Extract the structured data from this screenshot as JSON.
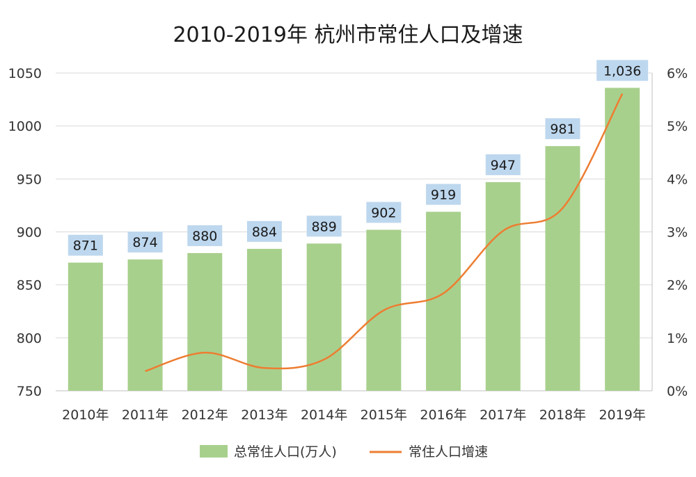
{
  "chart_data": {
    "type": "bar",
    "title": "2010-2019年  杭州市常住人口及增速",
    "categories": [
      "2010年",
      "2011年",
      "2012年",
      "2013年",
      "2014年",
      "2015年",
      "2016年",
      "2017年",
      "2018年",
      "2019年"
    ],
    "series": [
      {
        "name": "总常住人口(万人)",
        "type": "bar",
        "axis": "left",
        "values": [
          871,
          874,
          880,
          884,
          889,
          902,
          919,
          947,
          981,
          1036
        ],
        "data_labels": [
          "871",
          "874",
          "880",
          "884",
          "889",
          "902",
          "919",
          "947",
          "981",
          "1,036"
        ],
        "color": "#a8d08d"
      },
      {
        "name": "常住人口增速",
        "type": "line",
        "axis": "right",
        "values": [
          null,
          0.0037,
          0.0072,
          0.0043,
          0.0059,
          0.0152,
          0.0184,
          0.0302,
          0.0345,
          0.0561
        ],
        "color": "#ed7d31"
      }
    ],
    "y_left": {
      "ylim": [
        750,
        1050
      ],
      "ticks": [
        "750",
        "800",
        "850",
        "900",
        "950",
        "1000",
        "1050"
      ]
    },
    "y_right": {
      "ylim": [
        0,
        0.06
      ],
      "ticks": [
        "0%",
        "1%",
        "2%",
        "3%",
        "4%",
        "5%",
        "6%"
      ]
    },
    "grid": true,
    "legend_position": "bottom",
    "label_box_color": "#bdd7ee"
  }
}
